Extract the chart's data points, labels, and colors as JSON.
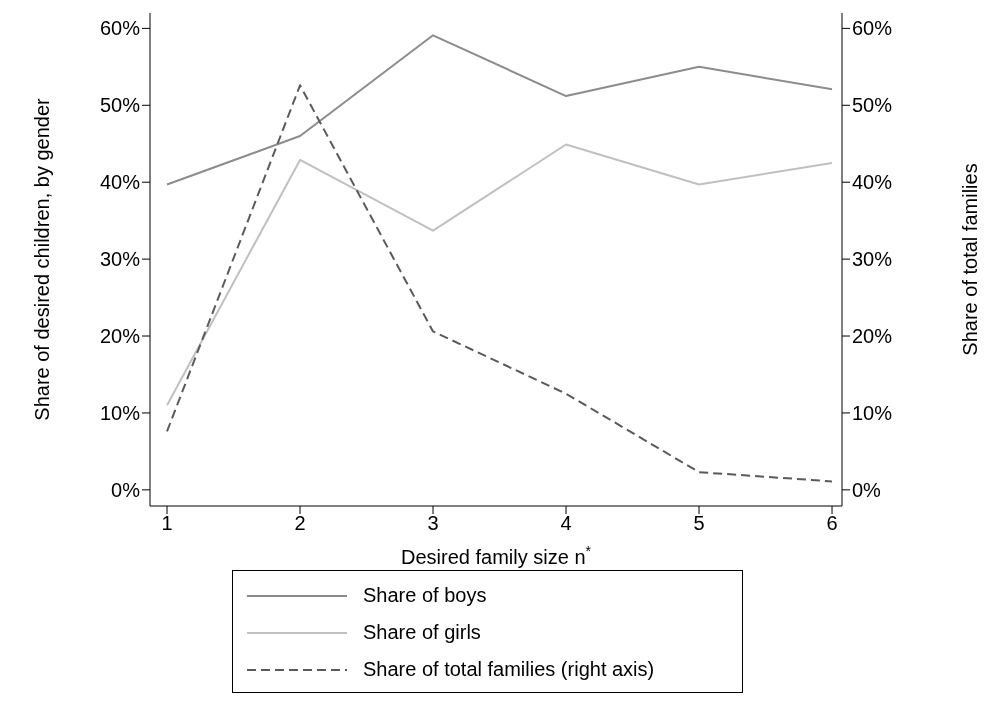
{
  "chart_data": {
    "type": "line",
    "xlabel": "Desired family size n$^{*}$",
    "ylabel": "Share of desired children, by gender",
    "y2label": "Share of total families",
    "x": [
      1,
      2,
      3,
      4,
      5,
      6
    ],
    "xlim": [
      0.872,
      6.075
    ],
    "xticks": [
      1,
      2,
      3,
      4,
      5,
      6
    ],
    "ylim": [
      -2.1,
      62
    ],
    "yticks": [
      {
        "value": 0,
        "label": "0%"
      },
      {
        "value": 10,
        "label": "10%"
      },
      {
        "value": 20,
        "label": "20%"
      },
      {
        "value": 30,
        "label": "30%"
      },
      {
        "value": 40,
        "label": "40%"
      },
      {
        "value": 50,
        "label": "50%"
      },
      {
        "value": 60,
        "label": "60%"
      }
    ],
    "y2lim": [
      -2.1,
      62
    ],
    "y2ticks": [
      {
        "value": 0,
        "label": "0%"
      },
      {
        "value": 10,
        "label": "10%"
      },
      {
        "value": 20,
        "label": "20%"
      },
      {
        "value": 30,
        "label": "30%"
      },
      {
        "value": 40,
        "label": "40%"
      },
      {
        "value": 50,
        "label": "50%"
      },
      {
        "value": 60,
        "label": "60%"
      }
    ],
    "series": [
      {
        "name": "Share of boys",
        "color": "#8c8c8c",
        "line_style": "solid",
        "values": [
          39.7,
          46.0,
          59.1,
          51.2,
          55.0,
          52.1
        ]
      },
      {
        "name": "Share of girls",
        "color": "#c0c0c0",
        "line_style": "solid",
        "values": [
          11.0,
          42.9,
          33.7,
          44.9,
          39.7,
          42.5
        ]
      },
      {
        "name": "Share of total families (right axis)",
        "color": "#5a5a5a",
        "line_style": "dashed",
        "axis": "y2",
        "values": [
          7.6,
          52.6,
          20.6,
          12.5,
          2.3,
          1.1
        ]
      }
    ],
    "legend": "bottom",
    "marker": "none",
    "grid": false
  }
}
